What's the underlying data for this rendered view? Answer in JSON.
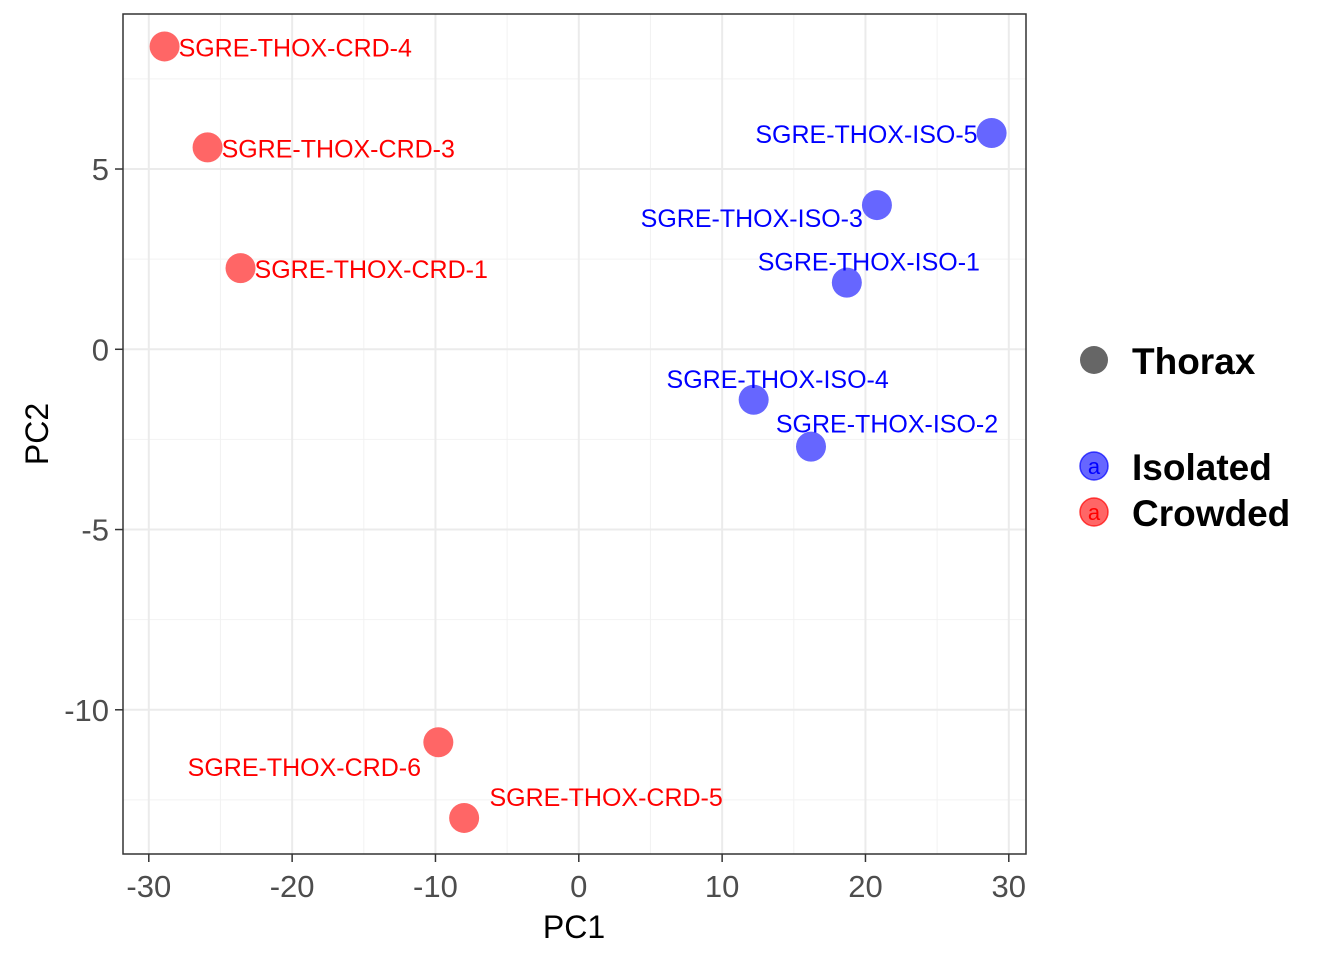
{
  "chart_data": {
    "type": "scatter",
    "title": "",
    "xlabel": "PC1",
    "ylabel": "PC2",
    "xlim": [
      -31.8,
      31.2
    ],
    "ylim": [
      -14.0,
      9.3
    ],
    "xticks": [
      -30,
      -20,
      -10,
      0,
      10,
      20,
      30
    ],
    "xtick_labels": [
      "-30",
      "-20",
      "-10",
      "0",
      "10",
      "20",
      "30"
    ],
    "yticks": [
      -10,
      -5,
      0,
      5
    ],
    "ytick_labels": [
      "-10",
      "-5",
      "0",
      "5"
    ],
    "grid": true,
    "series": [
      {
        "name": "Isolated",
        "color": "#0000ff",
        "point_color": "#6666ff",
        "points": [
          {
            "label": "SGRE-THOX-ISO-5",
            "x": 28.8,
            "y": 6.0
          },
          {
            "label": "SGRE-THOX-ISO-3",
            "x": 20.8,
            "y": 4.0
          },
          {
            "label": "SGRE-THOX-ISO-1",
            "x": 18.7,
            "y": 1.85
          },
          {
            "label": "SGRE-THOX-ISO-4",
            "x": 12.2,
            "y": -1.4
          },
          {
            "label": "SGRE-THOX-ISO-2",
            "x": 16.2,
            "y": -2.7
          }
        ]
      },
      {
        "name": "Crowded",
        "color": "#ff0000",
        "point_color": "#ff6666",
        "points": [
          {
            "label": "SGRE-THOX-CRD-4",
            "x": -28.9,
            "y": 8.4
          },
          {
            "label": "SGRE-THOX-CRD-3",
            "x": -25.9,
            "y": 5.6
          },
          {
            "label": "SGRE-THOX-CRD-1",
            "x": -23.6,
            "y": 2.25
          },
          {
            "label": "SGRE-THOX-CRD-6",
            "x": -9.8,
            "y": -10.9
          },
          {
            "label": "SGRE-THOX-CRD-5",
            "x": -8.0,
            "y": -13.0
          }
        ]
      }
    ],
    "legend": {
      "position": "right",
      "shape_title": "Thorax",
      "shape_color": "#666666",
      "key_letter": "a",
      "entries": [
        "Isolated",
        "Crowded"
      ]
    }
  }
}
